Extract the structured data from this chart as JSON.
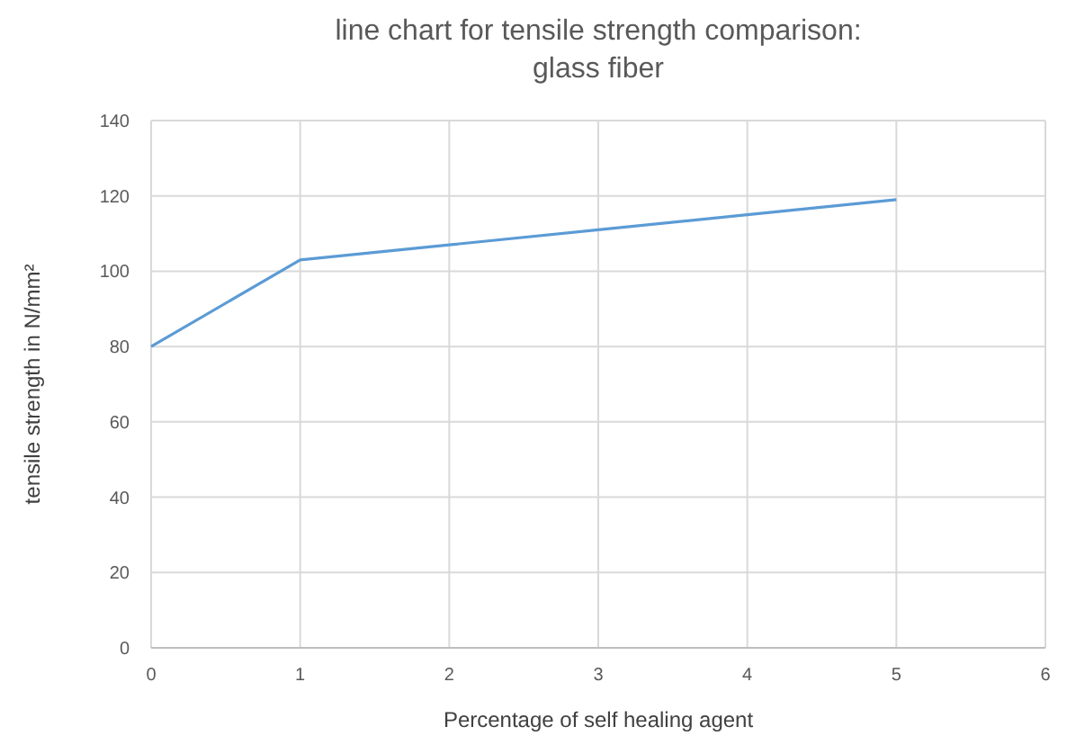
{
  "chart_data": {
    "type": "line",
    "title": "line chart for tensile strength comparison: glass fiber",
    "xlabel": "Percentage of self healing agent",
    "ylabel": "tensile strength in N/mm²",
    "x": [
      0,
      1,
      2,
      3,
      4,
      5
    ],
    "series": [
      {
        "color": "#5b9bd5",
        "values": [
          80,
          103,
          107,
          111,
          115,
          119
        ]
      }
    ],
    "xlim": [
      0,
      6
    ],
    "xticks": [
      0,
      1,
      2,
      3,
      4,
      5,
      6
    ],
    "ylim": [
      0,
      140
    ],
    "yticks": [
      0,
      20,
      40,
      60,
      80,
      100,
      120,
      140
    ],
    "grid": true,
    "marker": "none",
    "line_style": "solid"
  }
}
